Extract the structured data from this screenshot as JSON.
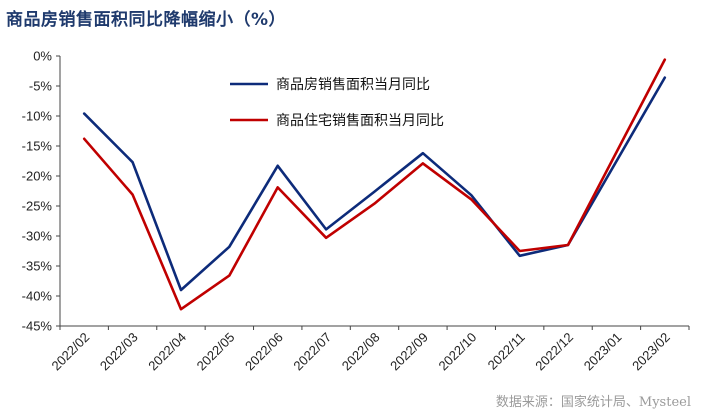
{
  "title": "商品房销售面积同比降幅缩小（%）",
  "source": "数据来源：国家统计局、Mysteel",
  "colors": {
    "series1": "#0d2b7a",
    "series2": "#c00000",
    "axis": "#444444"
  },
  "chart_data": {
    "type": "line",
    "categories": [
      "2022/02",
      "2022/03",
      "2022/04",
      "2022/05",
      "2022/06",
      "2022/07",
      "2022/08",
      "2022/09",
      "2022/10",
      "2022/11",
      "2022/12",
      "2023/01",
      "2023/02"
    ],
    "series": [
      {
        "name": "商品房销售面积当月同比",
        "color": "#0d2b7a",
        "values": [
          -9.6,
          -17.7,
          -39.0,
          -31.8,
          -18.3,
          -28.9,
          -22.6,
          -16.2,
          -23.2,
          -33.3,
          -31.5,
          null,
          -3.6
        ]
      },
      {
        "name": "商品住宅销售面积当月同比",
        "color": "#c00000",
        "values": [
          -13.8,
          -23.1,
          -42.2,
          -36.6,
          -21.9,
          -30.3,
          -24.6,
          -17.9,
          -23.9,
          -32.5,
          -31.5,
          null,
          -0.6
        ]
      }
    ],
    "ylim": [
      -45,
      0
    ],
    "ytick_step": 5,
    "ytick_labels": [
      "0%",
      "-5%",
      "-10%",
      "-15%",
      "-20%",
      "-25%",
      "-30%",
      "-35%",
      "-40%",
      "-45%"
    ],
    "legend_position": "top-center",
    "grid": false
  }
}
